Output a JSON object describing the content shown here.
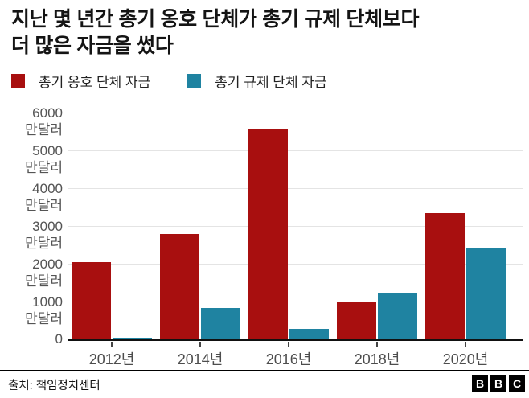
{
  "title": {
    "lines": [
      "지난 몇 년간 총기 옹호 단체가 총기 규제 단체보다",
      "더 많은 자금을 썼다"
    ]
  },
  "legend": {
    "items": [
      {
        "label": "총기 옹호 단체 자금",
        "color": "#a80f0f"
      },
      {
        "label": "총기 규제 단체 자금",
        "color": "#1f83a1"
      }
    ]
  },
  "chart_data": {
    "type": "bar",
    "categories": [
      "2012년",
      "2014년",
      "2016년",
      "2018년",
      "2020년"
    ],
    "series": [
      {
        "name": "총기 옹호 단체 자금",
        "color": "#a80f0f",
        "values": [
          2050,
          2780,
          5550,
          980,
          3330
        ]
      },
      {
        "name": "총기 규제 단체 자금",
        "color": "#1f83a1",
        "values": [
          50,
          830,
          280,
          1210,
          2400
        ]
      }
    ],
    "unit": "만달러",
    "zero_label": "0",
    "yticks": [
      0,
      1000,
      2000,
      3000,
      4000,
      5000,
      6000
    ],
    "ylim": [
      0,
      6000
    ],
    "grid": true,
    "legend_position": "top",
    "xlabel": "",
    "ylabel": "만달러"
  },
  "footer": {
    "source": "출처: 책임정치센터",
    "logo_letters": [
      "B",
      "B",
      "C"
    ]
  }
}
